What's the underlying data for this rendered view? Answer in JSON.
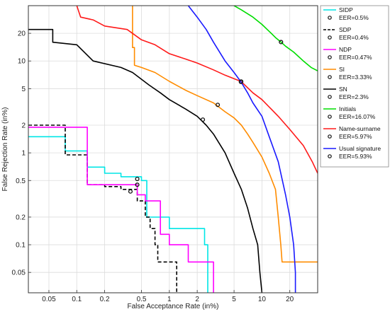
{
  "chart_data": {
    "type": "line",
    "xlabel": "False Acceptance Rate (in%)",
    "ylabel": "False Rejection Rate (in%)",
    "xscale": "log",
    "yscale": "log",
    "xlim": [
      0.03,
      40
    ],
    "ylim": [
      0.03,
      40
    ],
    "x_ticks": [
      0.05,
      0.1,
      0.2,
      0.5,
      1,
      2,
      5,
      10,
      20
    ],
    "x_tick_labels": [
      "0.05",
      "0.1",
      "0.2",
      "0.5",
      "1",
      "2",
      "5",
      "10",
      "20"
    ],
    "y_ticks": [
      0.05,
      0.1,
      0.2,
      0.5,
      1,
      2,
      5,
      10,
      20
    ],
    "y_tick_labels": [
      "0.05",
      "0.1",
      "0.2",
      "0.5",
      "1",
      "2",
      "5",
      "10",
      "20"
    ],
    "grid": true,
    "legend_position": "right",
    "series": [
      {
        "name": "SIDP",
        "color": "#00e6e6",
        "dash": "solid",
        "eer_label": "EER=0.5%",
        "eer_point": [
          0.45,
          0.52
        ],
        "points": [
          [
            0.03,
            1.5
          ],
          [
            0.075,
            1.5
          ],
          [
            0.075,
            1.05
          ],
          [
            0.13,
            1.05
          ],
          [
            0.13,
            0.7
          ],
          [
            0.2,
            0.7
          ],
          [
            0.2,
            0.6
          ],
          [
            0.3,
            0.6
          ],
          [
            0.3,
            0.55
          ],
          [
            0.5,
            0.55
          ],
          [
            0.5,
            0.5
          ],
          [
            0.57,
            0.5
          ],
          [
            0.57,
            0.2
          ],
          [
            1.0,
            0.2
          ],
          [
            1.0,
            0.15
          ],
          [
            2.4,
            0.15
          ],
          [
            2.4,
            0.1
          ],
          [
            2.6,
            0.1
          ],
          [
            2.6,
            0.03
          ]
        ]
      },
      {
        "name": "SDP",
        "color": "#000000",
        "dash": "dashed",
        "eer_label": "EER=0.4%",
        "eer_point": [
          0.38,
          0.38
        ],
        "points": [
          [
            0.03,
            2.0
          ],
          [
            0.075,
            2.0
          ],
          [
            0.075,
            0.95
          ],
          [
            0.13,
            0.95
          ],
          [
            0.13,
            0.45
          ],
          [
            0.2,
            0.45
          ],
          [
            0.2,
            0.43
          ],
          [
            0.3,
            0.43
          ],
          [
            0.3,
            0.4
          ],
          [
            0.45,
            0.4
          ],
          [
            0.45,
            0.3
          ],
          [
            0.55,
            0.3
          ],
          [
            0.55,
            0.2
          ],
          [
            0.62,
            0.2
          ],
          [
            0.62,
            0.15
          ],
          [
            0.7,
            0.15
          ],
          [
            0.7,
            0.1
          ],
          [
            0.75,
            0.1
          ],
          [
            0.75,
            0.065
          ],
          [
            1.2,
            0.065
          ],
          [
            1.2,
            0.03
          ]
        ]
      },
      {
        "name": "NDP",
        "color": "#ff00ff",
        "dash": "solid",
        "eer_label": "EER=0.47%",
        "eer_point": [
          0.45,
          0.45
        ],
        "points": [
          [
            0.03,
            1.9
          ],
          [
            0.13,
            1.9
          ],
          [
            0.13,
            0.45
          ],
          [
            0.45,
            0.45
          ],
          [
            0.45,
            0.35
          ],
          [
            0.55,
            0.35
          ],
          [
            0.55,
            0.3
          ],
          [
            0.8,
            0.3
          ],
          [
            0.8,
            0.13
          ],
          [
            1.0,
            0.13
          ],
          [
            1.0,
            0.1
          ],
          [
            1.6,
            0.1
          ],
          [
            1.6,
            0.065
          ],
          [
            3.0,
            0.065
          ],
          [
            3.0,
            0.03
          ]
        ]
      },
      {
        "name": "SI",
        "color": "#ff8c00",
        "dash": "solid",
        "eer_label": "EER=3.33%",
        "eer_point": [
          3.33,
          3.33
        ],
        "points": [
          [
            0.4,
            40
          ],
          [
            0.4,
            14
          ],
          [
            0.42,
            14
          ],
          [
            0.42,
            9
          ],
          [
            0.5,
            8.5
          ],
          [
            0.7,
            7.5
          ],
          [
            1.0,
            6.0
          ],
          [
            1.5,
            4.8
          ],
          [
            2.0,
            4.2
          ],
          [
            3.0,
            3.5
          ],
          [
            4.0,
            2.8
          ],
          [
            5.0,
            2.4
          ],
          [
            6.0,
            2.0
          ],
          [
            7.0,
            1.6
          ],
          [
            8.0,
            1.3
          ],
          [
            10.0,
            0.9
          ],
          [
            12.0,
            0.6
          ],
          [
            14.0,
            0.4
          ],
          [
            15.0,
            0.2
          ],
          [
            16.0,
            0.1
          ],
          [
            16.5,
            0.065
          ],
          [
            40,
            0.065
          ]
        ]
      },
      {
        "name": "SN",
        "color": "#000000",
        "dash": "solid",
        "eer_label": "EER=2.3%",
        "eer_point": [
          2.3,
          2.3
        ],
        "points": [
          [
            0.03,
            22
          ],
          [
            0.055,
            22
          ],
          [
            0.055,
            16
          ],
          [
            0.1,
            15
          ],
          [
            0.15,
            10
          ],
          [
            0.3,
            8.5
          ],
          [
            0.4,
            7.5
          ],
          [
            0.6,
            5.5
          ],
          [
            0.8,
            4.5
          ],
          [
            1.0,
            3.8
          ],
          [
            1.5,
            3.0
          ],
          [
            2.0,
            2.5
          ],
          [
            2.5,
            2.0
          ],
          [
            3.0,
            1.6
          ],
          [
            4.0,
            1.0
          ],
          [
            5.0,
            0.6
          ],
          [
            6.0,
            0.4
          ],
          [
            7.0,
            0.25
          ],
          [
            8.0,
            0.15
          ],
          [
            9.0,
            0.1
          ],
          [
            9.5,
            0.05
          ],
          [
            10.0,
            0.03
          ]
        ]
      },
      {
        "name": "Initials",
        "color": "#00dd00",
        "dash": "solid",
        "eer_label": "EER=16.07%",
        "eer_point": [
          16.07,
          16.07
        ],
        "points": [
          [
            5.0,
            40
          ],
          [
            6.0,
            36
          ],
          [
            8.0,
            30
          ],
          [
            10.0,
            25
          ],
          [
            12.0,
            21
          ],
          [
            14.0,
            18
          ],
          [
            16.07,
            16.07
          ],
          [
            18.0,
            14.5
          ],
          [
            22.0,
            12.5
          ],
          [
            28.0,
            10.0
          ],
          [
            34.0,
            8.5
          ],
          [
            40.0,
            7.8
          ]
        ]
      },
      {
        "name": "Name-surname",
        "color": "#ff1a1a",
        "dash": "solid",
        "eer_label": "EER=5.97%",
        "eer_point": [
          5.97,
          5.97
        ],
        "points": [
          [
            0.1,
            40
          ],
          [
            0.11,
            30
          ],
          [
            0.15,
            28
          ],
          [
            0.2,
            24
          ],
          [
            0.35,
            22
          ],
          [
            0.5,
            17
          ],
          [
            0.7,
            15
          ],
          [
            1.0,
            12
          ],
          [
            1.5,
            10.5
          ],
          [
            2.0,
            9.5
          ],
          [
            3.0,
            8.0
          ],
          [
            4.0,
            7.0
          ],
          [
            5.97,
            5.97
          ],
          [
            8.0,
            4.5
          ],
          [
            10.0,
            3.8
          ],
          [
            15.0,
            2.5
          ],
          [
            20.0,
            1.8
          ],
          [
            28.0,
            1.2
          ],
          [
            35.0,
            0.8
          ],
          [
            40.0,
            0.6
          ]
        ]
      },
      {
        "name": "Usual signature",
        "color": "#1a1aff",
        "dash": "solid",
        "eer_label": "EER=5.93%",
        "eer_point": [
          5.93,
          5.93
        ],
        "points": [
          [
            1.6,
            40
          ],
          [
            2.0,
            30
          ],
          [
            2.5,
            22
          ],
          [
            3.0,
            16
          ],
          [
            4.0,
            10
          ],
          [
            5.0,
            7.5
          ],
          [
            5.93,
            5.93
          ],
          [
            7.0,
            4.5
          ],
          [
            8.0,
            3.5
          ],
          [
            10.0,
            2.5
          ],
          [
            12.0,
            1.5
          ],
          [
            15.0,
            0.8
          ],
          [
            18.0,
            0.35
          ],
          [
            20.0,
            0.2
          ],
          [
            22.0,
            0.1
          ],
          [
            23.0,
            0.05
          ],
          [
            23.0,
            0.03
          ]
        ]
      }
    ]
  }
}
